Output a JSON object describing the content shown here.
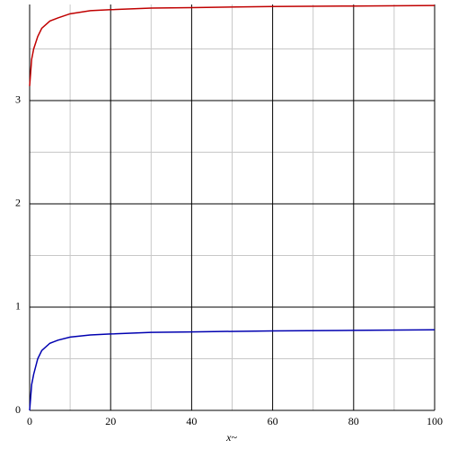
{
  "chart_data": {
    "type": "line",
    "x_label": "x~",
    "x": [
      0,
      0.5,
      1,
      2,
      3,
      5,
      7,
      10,
      15,
      20,
      30,
      40,
      60,
      80,
      100
    ],
    "series": [
      {
        "color": "#c00000",
        "values": [
          3.14,
          3.4,
          3.5,
          3.62,
          3.7,
          3.77,
          3.8,
          3.84,
          3.87,
          3.88,
          3.895,
          3.9,
          3.91,
          3.915,
          3.92
        ]
      },
      {
        "color": "#0000b0",
        "values": [
          0,
          0.25,
          0.35,
          0.5,
          0.58,
          0.65,
          0.68,
          0.71,
          0.73,
          0.74,
          0.755,
          0.76,
          0.77,
          0.775,
          0.78
        ]
      }
    ],
    "xlim": [
      0,
      100
    ],
    "ylim": [
      0,
      3.93
    ],
    "xticks": [
      0,
      20,
      40,
      60,
      80,
      100
    ],
    "yticks": [
      0,
      1,
      2,
      3
    ],
    "xminor": [
      10,
      30,
      50,
      70,
      90
    ],
    "yminor": [
      0.5,
      1.5,
      2.5,
      3.5
    ],
    "grid": true
  }
}
